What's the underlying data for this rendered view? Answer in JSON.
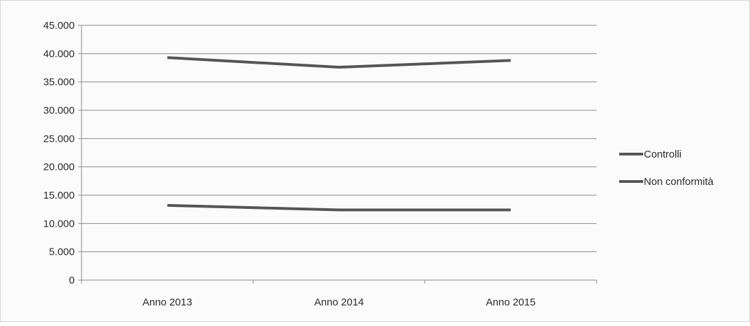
{
  "chart_data": {
    "type": "line",
    "categories": [
      "Anno 2013",
      "Anno 2014",
      "Anno 2015"
    ],
    "series": [
      {
        "name": "Controlli",
        "values": [
          39300,
          37600,
          38800
        ],
        "color": "#555555"
      },
      {
        "name": "Non conformità",
        "values": [
          13200,
          12400,
          12400
        ],
        "color": "#555555"
      }
    ],
    "ylim": [
      0,
      45000
    ],
    "yticks": [
      0,
      5000,
      10000,
      15000,
      20000,
      25000,
      30000,
      35000,
      40000,
      45000
    ],
    "ytick_labels": [
      "0",
      "5.000",
      "10.000",
      "15.000",
      "20.000",
      "25.000",
      "30.000",
      "35.000",
      "40.000",
      "45.000"
    ],
    "grid": true,
    "legend_position": "right"
  }
}
